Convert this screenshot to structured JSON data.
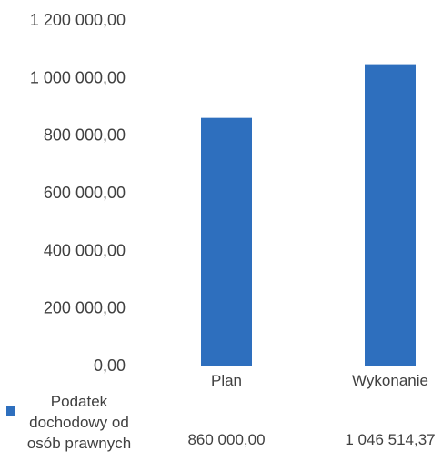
{
  "chart_data": {
    "type": "bar",
    "categories": [
      "Plan",
      "Wykonanie"
    ],
    "series": [
      {
        "name": "Podatek dochodowy od osób prawnych",
        "name_lines": [
          "Podatek",
          "dochodowy od",
          "osób prawnych"
        ],
        "values": [
          860000.0,
          1046514.37
        ],
        "value_labels": [
          "860 000,00",
          "1 046 514,37"
        ],
        "color": "#2e6fbe"
      }
    ],
    "ylim": [
      0,
      1200000
    ],
    "yticks": [
      0,
      200000,
      400000,
      600000,
      800000,
      1000000,
      1200000
    ],
    "ytick_labels": [
      "0,00",
      "200 000,00",
      "400 000,00",
      "600 000,00",
      "800 000,00",
      "1 000 000,00",
      "1 200 000,00"
    ],
    "grid": false,
    "legend": "bottom-left in data table",
    "title": "",
    "xlabel": "",
    "ylabel": ""
  }
}
